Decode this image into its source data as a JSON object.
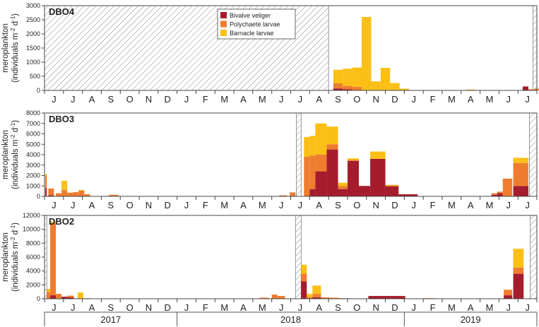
{
  "chart_data": {
    "type": "bar",
    "stacked": true,
    "colors": {
      "bivalve": "#a51d2d",
      "polychaete": "#ee7d2f",
      "barnacle": "#fbbf16",
      "frame": "#444444",
      "hatch": "#555555"
    },
    "legend": [
      "Bivalve veliger",
      "Polychaete larvae",
      "Barnacle larvae"
    ],
    "legend_position": "top-center",
    "ylabel": "meroplankton",
    "ylabel_units_prefix": "(individuals m",
    "ylabel_units_mid": " d",
    "ylabel_units_suffix": ")",
    "ylabel_sup_area": "-2",
    "ylabel_sup_day": "-1",
    "months": [
      "J",
      "J",
      "A",
      "S",
      "O",
      "N",
      "D",
      "J",
      "F",
      "M",
      "A",
      "M",
      "J",
      "J",
      "A",
      "S",
      "O",
      "N",
      "D",
      "J",
      "F",
      "M",
      "A",
      "M",
      "J",
      "J"
    ],
    "years": [
      "2017",
      "2018",
      "2019"
    ],
    "panels": [
      {
        "title": "DBO4",
        "ylim": [
          0,
          3000
        ],
        "yticks": [
          "0",
          "500",
          "1000",
          "1500",
          "2000",
          "2500",
          "3000"
        ],
        "ytick_values": [
          0,
          500,
          1000,
          1500,
          2000,
          2500,
          3000
        ],
        "gaps": [
          [
            0,
            15
          ],
          [
            25.8,
            26
          ]
        ],
        "bars": [
          {
            "x": 15.25,
            "w": 0.5,
            "b": 70,
            "p": 180,
            "n": 480
          },
          {
            "x": 15.75,
            "w": 0.5,
            "b": 40,
            "p": 120,
            "n": 610
          },
          {
            "x": 16.25,
            "w": 0.5,
            "b": 0,
            "p": 130,
            "n": 680
          },
          {
            "x": 16.75,
            "w": 0.5,
            "b": 0,
            "p": 0,
            "n": 2600
          },
          {
            "x": 17.25,
            "w": 0.5,
            "b": 0,
            "p": 0,
            "n": 320
          },
          {
            "x": 17.75,
            "w": 0.5,
            "b": 0,
            "p": 0,
            "n": 800
          },
          {
            "x": 18.25,
            "w": 0.5,
            "b": 0,
            "p": 0,
            "n": 260
          },
          {
            "x": 18.75,
            "w": 0.5,
            "b": 0,
            "p": 0,
            "n": 60
          },
          {
            "x": 22.25,
            "w": 0.5,
            "b": 0,
            "p": 0,
            "n": 30
          },
          {
            "x": 25.25,
            "w": 0.3,
            "b": 140,
            "p": 0,
            "n": 0
          },
          {
            "x": 25.55,
            "w": 0.3,
            "b": 0,
            "p": 40,
            "n": 0
          },
          {
            "x": 25.85,
            "w": 0.3,
            "b": 0,
            "p": 60,
            "n": 0
          }
        ]
      },
      {
        "title": "DBO3",
        "ylim": [
          0,
          8000
        ],
        "yticks": [
          "0",
          "1000",
          "2000",
          "3000",
          "4000",
          "5000",
          "6000",
          "7000",
          "8000"
        ],
        "ytick_values": [
          0,
          1000,
          2000,
          3000,
          4000,
          5000,
          6000,
          7000,
          8000
        ],
        "gaps": [
          [
            13.3,
            13.55
          ],
          [
            25.6,
            26
          ]
        ],
        "bars": [
          {
            "x": 0.04,
            "w": 0.08,
            "b": 800,
            "p": 1200,
            "n": 150
          },
          {
            "x": 0.2,
            "w": 0.3,
            "b": 100,
            "p": 650,
            "n": 0
          },
          {
            "x": 0.6,
            "w": 0.3,
            "b": 0,
            "p": 300,
            "n": 0
          },
          {
            "x": 0.9,
            "w": 0.3,
            "b": 0,
            "p": 600,
            "n": 900
          },
          {
            "x": 1.2,
            "w": 0.3,
            "b": 0,
            "p": 350,
            "n": 0
          },
          {
            "x": 1.5,
            "w": 0.3,
            "b": 0,
            "p": 400,
            "n": 0
          },
          {
            "x": 1.8,
            "w": 0.3,
            "b": 60,
            "p": 500,
            "n": 50
          },
          {
            "x": 2.1,
            "w": 0.3,
            "b": 0,
            "p": 200,
            "n": 0
          },
          {
            "x": 3.4,
            "w": 0.5,
            "b": 0,
            "p": 150,
            "n": 0
          },
          {
            "x": 12.4,
            "w": 0.4,
            "b": 0,
            "p": 100,
            "n": 0
          },
          {
            "x": 12.95,
            "w": 0.3,
            "b": 0,
            "p": 380,
            "n": 0
          },
          {
            "x": 13.7,
            "w": 0.3,
            "b": 0,
            "p": 3800,
            "n": 1900
          },
          {
            "x": 14.0,
            "w": 0.3,
            "b": 700,
            "p": 3200,
            "n": 1900
          },
          {
            "x": 14.3,
            "w": 0.6,
            "b": 2400,
            "p": 1600,
            "n": 3000
          },
          {
            "x": 14.9,
            "w": 0.6,
            "b": 4500,
            "p": 500,
            "n": 1700
          },
          {
            "x": 15.5,
            "w": 0.5,
            "b": 700,
            "p": 300,
            "n": 300
          },
          {
            "x": 16.0,
            "w": 0.6,
            "b": 3400,
            "p": 100,
            "n": 150
          },
          {
            "x": 16.6,
            "w": 0.6,
            "b": 1000,
            "p": 0,
            "n": 0
          },
          {
            "x": 17.2,
            "w": 0.8,
            "b": 3600,
            "p": 0,
            "n": 700
          },
          {
            "x": 18.0,
            "w": 0.7,
            "b": 950,
            "p": 100,
            "n": 50
          },
          {
            "x": 18.7,
            "w": 1.0,
            "b": 200,
            "p": 0,
            "n": 0
          },
          {
            "x": 23.6,
            "w": 0.3,
            "b": 150,
            "p": 150,
            "n": 0
          },
          {
            "x": 23.9,
            "w": 0.3,
            "b": 300,
            "p": 150,
            "n": 0
          },
          {
            "x": 24.2,
            "w": 0.5,
            "b": 0,
            "p": 1700,
            "n": 0
          },
          {
            "x": 24.75,
            "w": 0.8,
            "b": 1000,
            "p": 2200,
            "n": 500
          }
        ]
      },
      {
        "title": "DBO2",
        "ylim": [
          0,
          12000
        ],
        "yticks": [
          "0",
          "2000",
          "4000",
          "6000",
          "8000",
          "10000",
          "12000"
        ],
        "ytick_values": [
          0,
          2000,
          4000,
          6000,
          8000,
          10000,
          12000
        ],
        "gaps": [
          [
            0,
            0.12
          ],
          [
            13.25,
            13.55
          ],
          [
            25.65,
            26
          ]
        ],
        "bars": [
          {
            "x": 0.12,
            "w": 0.18,
            "b": 0,
            "p": 1000,
            "n": 400
          },
          {
            "x": 0.3,
            "w": 0.3,
            "b": 500,
            "p": 10400,
            "n": 200
          },
          {
            "x": 0.6,
            "w": 0.3,
            "b": 0,
            "p": 700,
            "n": 0
          },
          {
            "x": 0.9,
            "w": 0.3,
            "b": 300,
            "p": 0,
            "n": 0
          },
          {
            "x": 1.2,
            "w": 0.35,
            "b": 200,
            "p": 250,
            "n": 0
          },
          {
            "x": 1.75,
            "w": 0.3,
            "b": 0,
            "p": 0,
            "n": 900
          },
          {
            "x": 2.1,
            "w": 0.3,
            "b": 0,
            "p": 80,
            "n": 0
          },
          {
            "x": 3.3,
            "w": 0.6,
            "b": 0,
            "p": 60,
            "n": 0
          },
          {
            "x": 11.35,
            "w": 0.5,
            "b": 0,
            "p": 150,
            "n": 0
          },
          {
            "x": 12.0,
            "w": 0.3,
            "b": 0,
            "p": 600,
            "n": 0
          },
          {
            "x": 12.3,
            "w": 0.4,
            "b": 0,
            "p": 400,
            "n": 0
          },
          {
            "x": 13.55,
            "w": 0.3,
            "b": 2500,
            "p": 1100,
            "n": 1300
          },
          {
            "x": 13.85,
            "w": 0.3,
            "b": 0,
            "p": 200,
            "n": 500
          },
          {
            "x": 14.15,
            "w": 0.45,
            "b": 200,
            "p": 500,
            "n": 1200
          },
          {
            "x": 14.6,
            "w": 0.45,
            "b": 0,
            "p": 200,
            "n": 0
          },
          {
            "x": 15.05,
            "w": 0.5,
            "b": 0,
            "p": 150,
            "n": 0
          },
          {
            "x": 15.55,
            "w": 0.5,
            "b": 0,
            "p": 80,
            "n": 0
          },
          {
            "x": 17.1,
            "w": 0.6,
            "b": 400,
            "p": 0,
            "n": 0
          },
          {
            "x": 17.7,
            "w": 0.6,
            "b": 400,
            "p": 0,
            "n": 0
          },
          {
            "x": 18.3,
            "w": 0.75,
            "b": 400,
            "p": 0,
            "n": 0
          },
          {
            "x": 20.0,
            "w": 0.6,
            "b": 0,
            "p": 80,
            "n": 0
          },
          {
            "x": 24.25,
            "w": 0.45,
            "b": 500,
            "p": 800,
            "n": 0
          },
          {
            "x": 24.75,
            "w": 0.55,
            "b": 3600,
            "p": 900,
            "n": 2700
          }
        ]
      }
    ]
  }
}
